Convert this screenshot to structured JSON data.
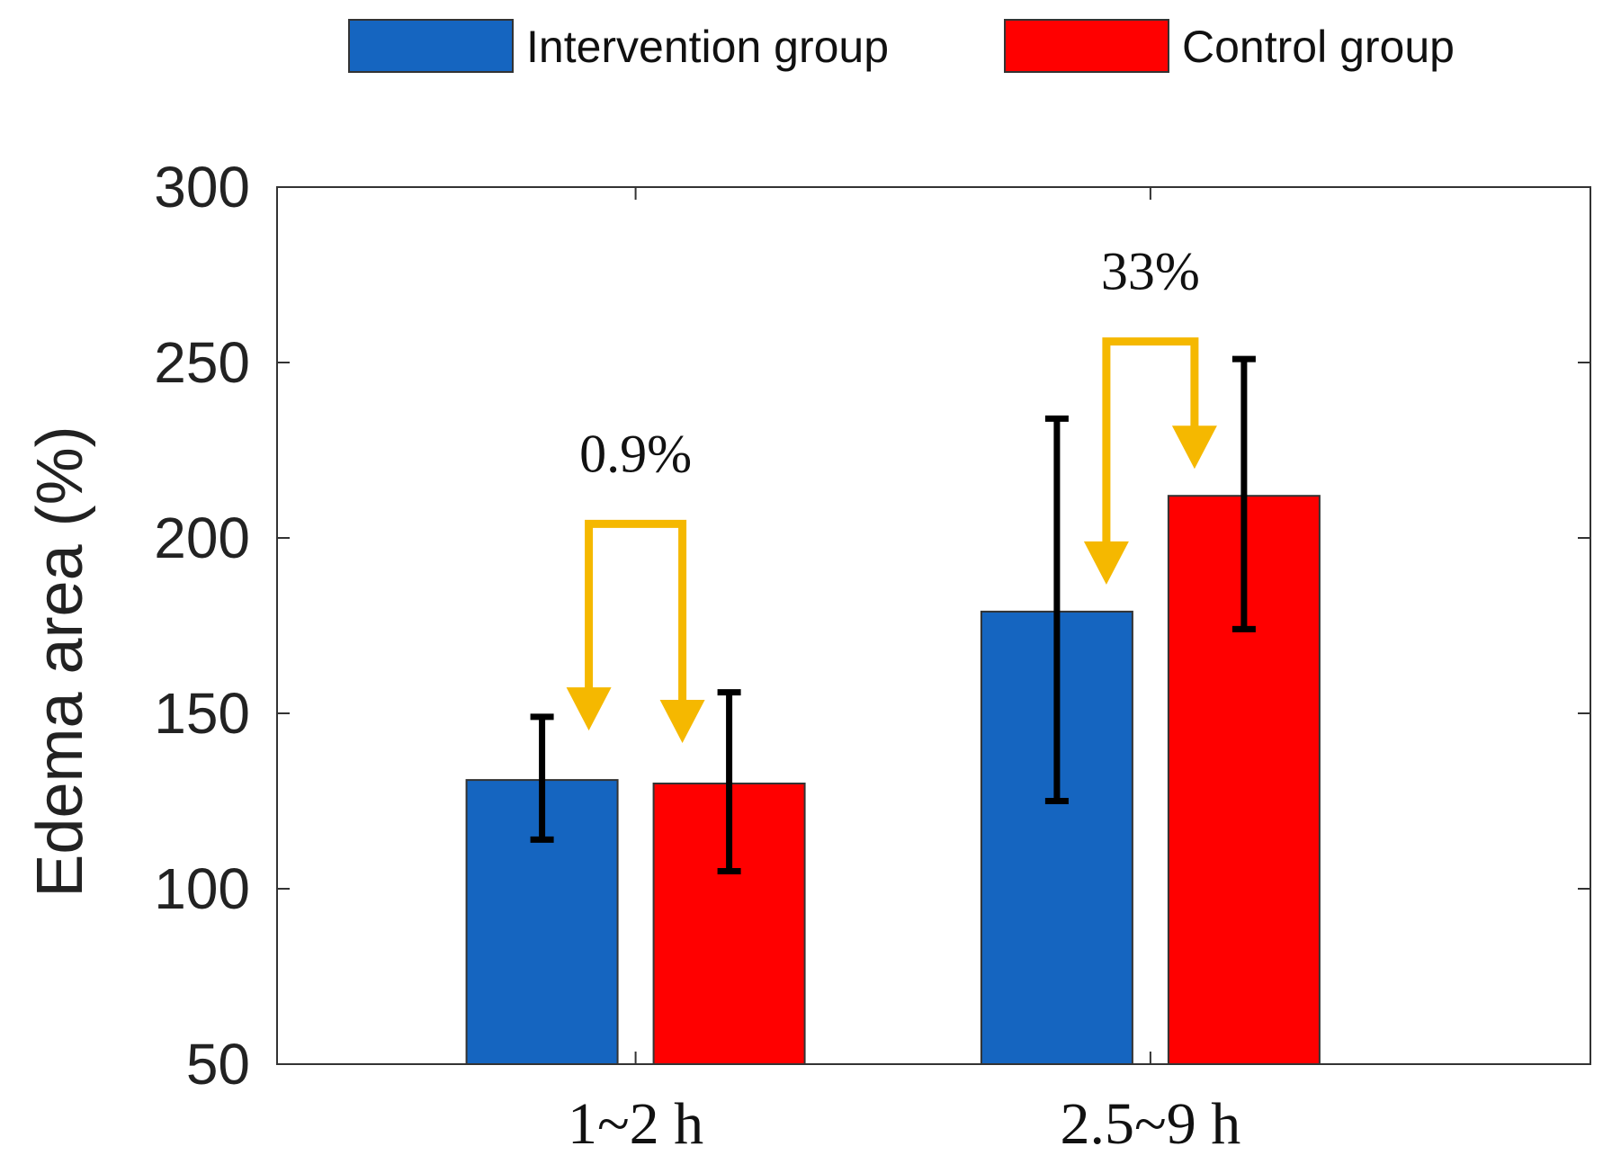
{
  "chart_data": {
    "type": "bar",
    "title": "",
    "xlabel": "",
    "ylabel": "Edema area (%)",
    "ylim": [
      50,
      300
    ],
    "yticks": [
      50,
      100,
      150,
      200,
      250,
      300
    ],
    "categories": [
      "1~2 h",
      "2.5~9 h"
    ],
    "series": [
      {
        "name": "Intervention group",
        "color": "#1565C0",
        "values": [
          131,
          179
        ],
        "error_low": [
          114,
          125
        ],
        "error_high": [
          149,
          234
        ]
      },
      {
        "name": "Control group",
        "color": "#FF0000",
        "values": [
          130,
          212
        ],
        "error_low": [
          105,
          174
        ],
        "error_high": [
          156,
          251
        ]
      }
    ],
    "legend": {
      "placement": "top-center"
    },
    "annotations": [
      {
        "text": "0.9%",
        "category": 0,
        "color": "#F5B800"
      },
      {
        "text": "33%",
        "category": 1,
        "color": "#F5B800"
      }
    ],
    "grid": false
  }
}
